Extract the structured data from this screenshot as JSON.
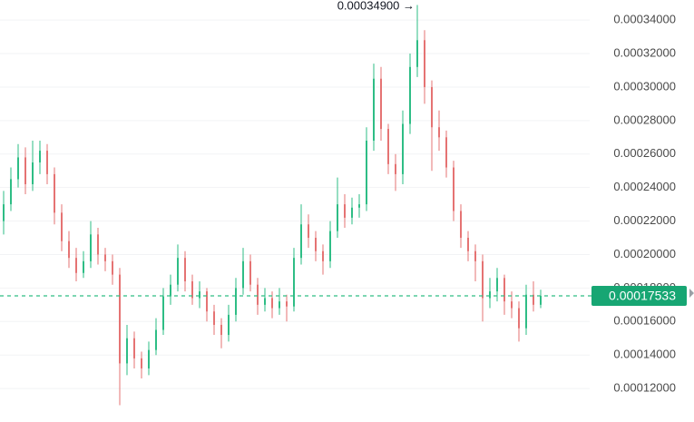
{
  "chart_data": {
    "type": "candlestick",
    "up_color": "#2ebd85",
    "down_color": "#e57373",
    "grid": true,
    "ylim": [
      0.0001,
      0.000352
    ],
    "yticks": [
      {
        "value": 0.00012,
        "label": "0.00012000"
      },
      {
        "value": 0.00014,
        "label": "0.00014000"
      },
      {
        "value": 0.00016,
        "label": "0.00016000"
      },
      {
        "value": 0.00018,
        "label": "0.00018000"
      },
      {
        "value": 0.0002,
        "label": "0.00020000"
      },
      {
        "value": 0.00022,
        "label": "0.00022000"
      },
      {
        "value": 0.00024,
        "label": "0.00024000"
      },
      {
        "value": 0.00026,
        "label": "0.00026000"
      },
      {
        "value": 0.00028,
        "label": "0.00028000"
      },
      {
        "value": 0.0003,
        "label": "0.00030000"
      },
      {
        "value": 0.00032,
        "label": "0.00032000"
      },
      {
        "value": 0.00034,
        "label": "0.00034000"
      }
    ],
    "last_price": 0.00017533,
    "max_annotation": {
      "value": 0.000349,
      "label": "0.00034900 →"
    },
    "open": [
      0.00022,
      0.00023,
      0.000245,
      0.000258,
      0.000242,
      0.000255,
      0.000262,
      0.000248,
      0.000225,
      0.000208,
      0.000198,
      0.000189,
      0.000196,
      0.000212,
      0.0002,
      0.000196,
      0.000188,
      0.000135,
      0.00015,
      0.000138,
      0.000132,
      0.000143,
      0.000155,
      0.000175,
      0.000182,
      0.000198,
      0.000184,
      0.000174,
      0.000178,
      0.000166,
      0.000158,
      0.000152,
      0.000164,
      0.00018,
      0.000196,
      0.000182,
      0.00017,
      0.000174,
      0.000168,
      0.000172,
      0.000169,
      0.000198,
      0.000218,
      0.00021,
      0.000202,
      0.000196,
      0.000214,
      0.00023,
      0.000222,
      0.000228,
      0.00023,
      0.000268,
      0.000305,
      0.000275,
      0.000254,
      0.000248,
      0.000278,
      0.000312,
      0.000328,
      0.0003,
      0.000276,
      0.00027,
      0.000252,
      0.000226,
      0.00021,
      0.000202,
      0.000196,
      0.000174,
      0.000178,
      0.000186,
      0.000172,
      0.000168,
      0.000156,
      0.000176,
      0.00017
    ],
    "high": [
      0.000238,
      0.000252,
      0.000266,
      0.000264,
      0.000268,
      0.000268,
      0.000266,
      0.000252,
      0.00023,
      0.000214,
      0.000204,
      0.000202,
      0.00022,
      0.000216,
      0.000204,
      0.0002,
      0.000192,
      0.000158,
      0.000154,
      0.000142,
      0.000148,
      0.000162,
      0.00018,
      0.000188,
      0.000206,
      0.000202,
      0.000188,
      0.000184,
      0.00018,
      0.00017,
      0.000162,
      0.00017,
      0.000186,
      0.000204,
      0.0002,
      0.000186,
      0.00018,
      0.000178,
      0.00018,
      0.000176,
      0.000204,
      0.00023,
      0.000224,
      0.000214,
      0.000206,
      0.00022,
      0.000246,
      0.000236,
      0.000234,
      0.000236,
      0.000276,
      0.000314,
      0.000312,
      0.000278,
      0.00026,
      0.000286,
      0.00032,
      0.000349,
      0.000334,
      0.000304,
      0.000286,
      0.000274,
      0.000256,
      0.00023,
      0.000214,
      0.000206,
      0.0002,
      0.000186,
      0.000192,
      0.000188,
      0.000178,
      0.000172,
      0.000182,
      0.000184,
      0.000179
    ],
    "low": [
      0.000212,
      0.000226,
      0.00024,
      0.000236,
      0.000238,
      0.000248,
      0.000242,
      0.000218,
      0.000202,
      0.000192,
      0.000184,
      0.000186,
      0.000192,
      0.000194,
      0.00019,
      0.000182,
      0.00011,
      0.000128,
      0.000132,
      0.000126,
      0.000128,
      0.00014,
      0.000152,
      0.00017,
      0.000178,
      0.000178,
      0.00017,
      0.000168,
      0.00016,
      0.000152,
      0.000144,
      0.000148,
      0.00016,
      0.000176,
      0.000178,
      0.000164,
      0.000166,
      0.000162,
      0.000164,
      0.00016,
      0.000166,
      0.000194,
      0.000204,
      0.000196,
      0.000188,
      0.000192,
      0.00021,
      0.000216,
      0.000218,
      0.000222,
      0.000226,
      0.000262,
      0.000268,
      0.000248,
      0.000238,
      0.000242,
      0.000272,
      0.000306,
      0.00029,
      0.00025,
      0.000262,
      0.000246,
      0.00022,
      0.000204,
      0.000196,
      0.000184,
      0.00016,
      0.000168,
      0.000172,
      0.000164,
      0.000162,
      0.000148,
      0.000152,
      0.000166,
      0.000168
    ],
    "close": [
      0.00023,
      0.000245,
      0.000258,
      0.000242,
      0.000255,
      0.000262,
      0.000248,
      0.000225,
      0.000208,
      0.000198,
      0.000189,
      0.000196,
      0.000212,
      0.0002,
      0.000196,
      0.000188,
      0.000135,
      0.00015,
      0.000138,
      0.000132,
      0.000143,
      0.000155,
      0.000175,
      0.000182,
      0.000198,
      0.000184,
      0.000174,
      0.000178,
      0.000166,
      0.000158,
      0.000152,
      0.000164,
      0.00018,
      0.000196,
      0.000182,
      0.00017,
      0.000174,
      0.000168,
      0.000172,
      0.000169,
      0.000198,
      0.000218,
      0.00021,
      0.000202,
      0.000196,
      0.000214,
      0.00023,
      0.000222,
      0.000228,
      0.00023,
      0.000268,
      0.000305,
      0.000275,
      0.000254,
      0.000248,
      0.000278,
      0.000312,
      0.000328,
      0.0003,
      0.000276,
      0.00027,
      0.000252,
      0.000226,
      0.00021,
      0.000202,
      0.000196,
      0.000174,
      0.000178,
      0.000186,
      0.000172,
      0.000168,
      0.000156,
      0.000176,
      0.00017,
      0.00017533
    ]
  }
}
